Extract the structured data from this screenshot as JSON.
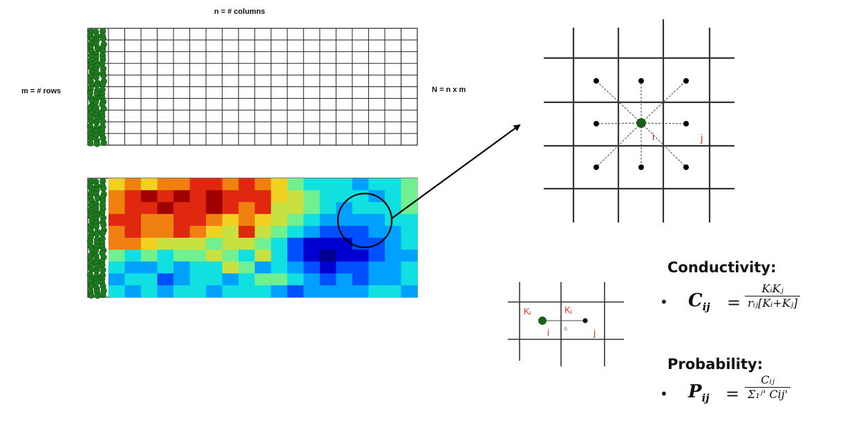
{
  "labels": {
    "columns": "n = # columns",
    "rows": "m = # rows",
    "total": "N = n x m"
  },
  "conductivity": {
    "heading": "Conductivity:",
    "bullet": "•",
    "lhs": "C",
    "lhs_sub": "ij",
    "equals": "=",
    "numerator": "KᵢKⱼ",
    "denominator": "rᵢⱼ[Kᵢ+Kⱼ]"
  },
  "probability": {
    "heading": "Probability:",
    "bullet": "•",
    "lhs": "P",
    "lhs_sub": "ij",
    "equals": "=",
    "numerator": "Cᵢⱼ",
    "denominator": "Σ₁ʲ' Cij'"
  },
  "zoom_labels": {
    "i": "i",
    "j": "j"
  },
  "small_labels": {
    "Ki": "Kᵢ",
    "Kj": "Kⱼ",
    "r": "rᵢ",
    "i": "i",
    "j": "j"
  },
  "colors": {
    "grid": "#222222",
    "plant": "#1e7a1e",
    "center_node": "#1a5e1a",
    "label_red": "#e0332b",
    "colormap": [
      "#00008f",
      "#0000d0",
      "#0050ff",
      "#00a0ff",
      "#10e0e0",
      "#70f090",
      "#c8e040",
      "#f0d020",
      "#f08010",
      "#e02810",
      "#a00000"
    ]
  },
  "heatmap": {
    "rows": 10,
    "cols": 19,
    "values": [
      [
        7,
        8,
        7,
        8,
        8,
        9,
        9,
        8,
        9,
        8,
        7,
        5,
        4,
        4,
        4,
        3,
        4,
        4,
        5
      ],
      [
        8,
        9,
        10,
        9,
        10,
        9,
        10,
        9,
        9,
        9,
        7,
        6,
        5,
        4,
        4,
        4,
        3,
        4,
        5
      ],
      [
        8,
        9,
        9,
        10,
        9,
        9,
        10,
        9,
        8,
        9,
        6,
        6,
        5,
        4,
        3,
        4,
        4,
        4,
        5
      ],
      [
        9,
        9,
        8,
        8,
        9,
        9,
        8,
        7,
        8,
        7,
        6,
        5,
        4,
        3,
        3,
        3,
        3,
        4,
        4
      ],
      [
        8,
        9,
        8,
        8,
        9,
        8,
        7,
        6,
        9,
        6,
        5,
        4,
        3,
        2,
        2,
        2,
        3,
        3,
        4
      ],
      [
        8,
        8,
        7,
        6,
        6,
        6,
        5,
        6,
        6,
        5,
        4,
        2,
        1,
        1,
        1,
        2,
        2,
        3,
        4
      ],
      [
        5,
        4,
        5,
        4,
        5,
        5,
        6,
        5,
        4,
        6,
        4,
        2,
        1,
        0,
        1,
        1,
        2,
        3,
        3
      ],
      [
        4,
        3,
        3,
        4,
        3,
        4,
        4,
        6,
        5,
        3,
        4,
        3,
        2,
        1,
        2,
        2,
        3,
        3,
        4
      ],
      [
        3,
        4,
        4,
        2,
        3,
        4,
        4,
        3,
        4,
        5,
        5,
        4,
        3,
        2,
        3,
        2,
        3,
        3,
        4
      ],
      [
        4,
        3,
        4,
        3,
        4,
        4,
        3,
        4,
        4,
        4,
        3,
        2,
        3,
        3,
        3,
        3,
        4,
        4,
        3
      ]
    ]
  }
}
